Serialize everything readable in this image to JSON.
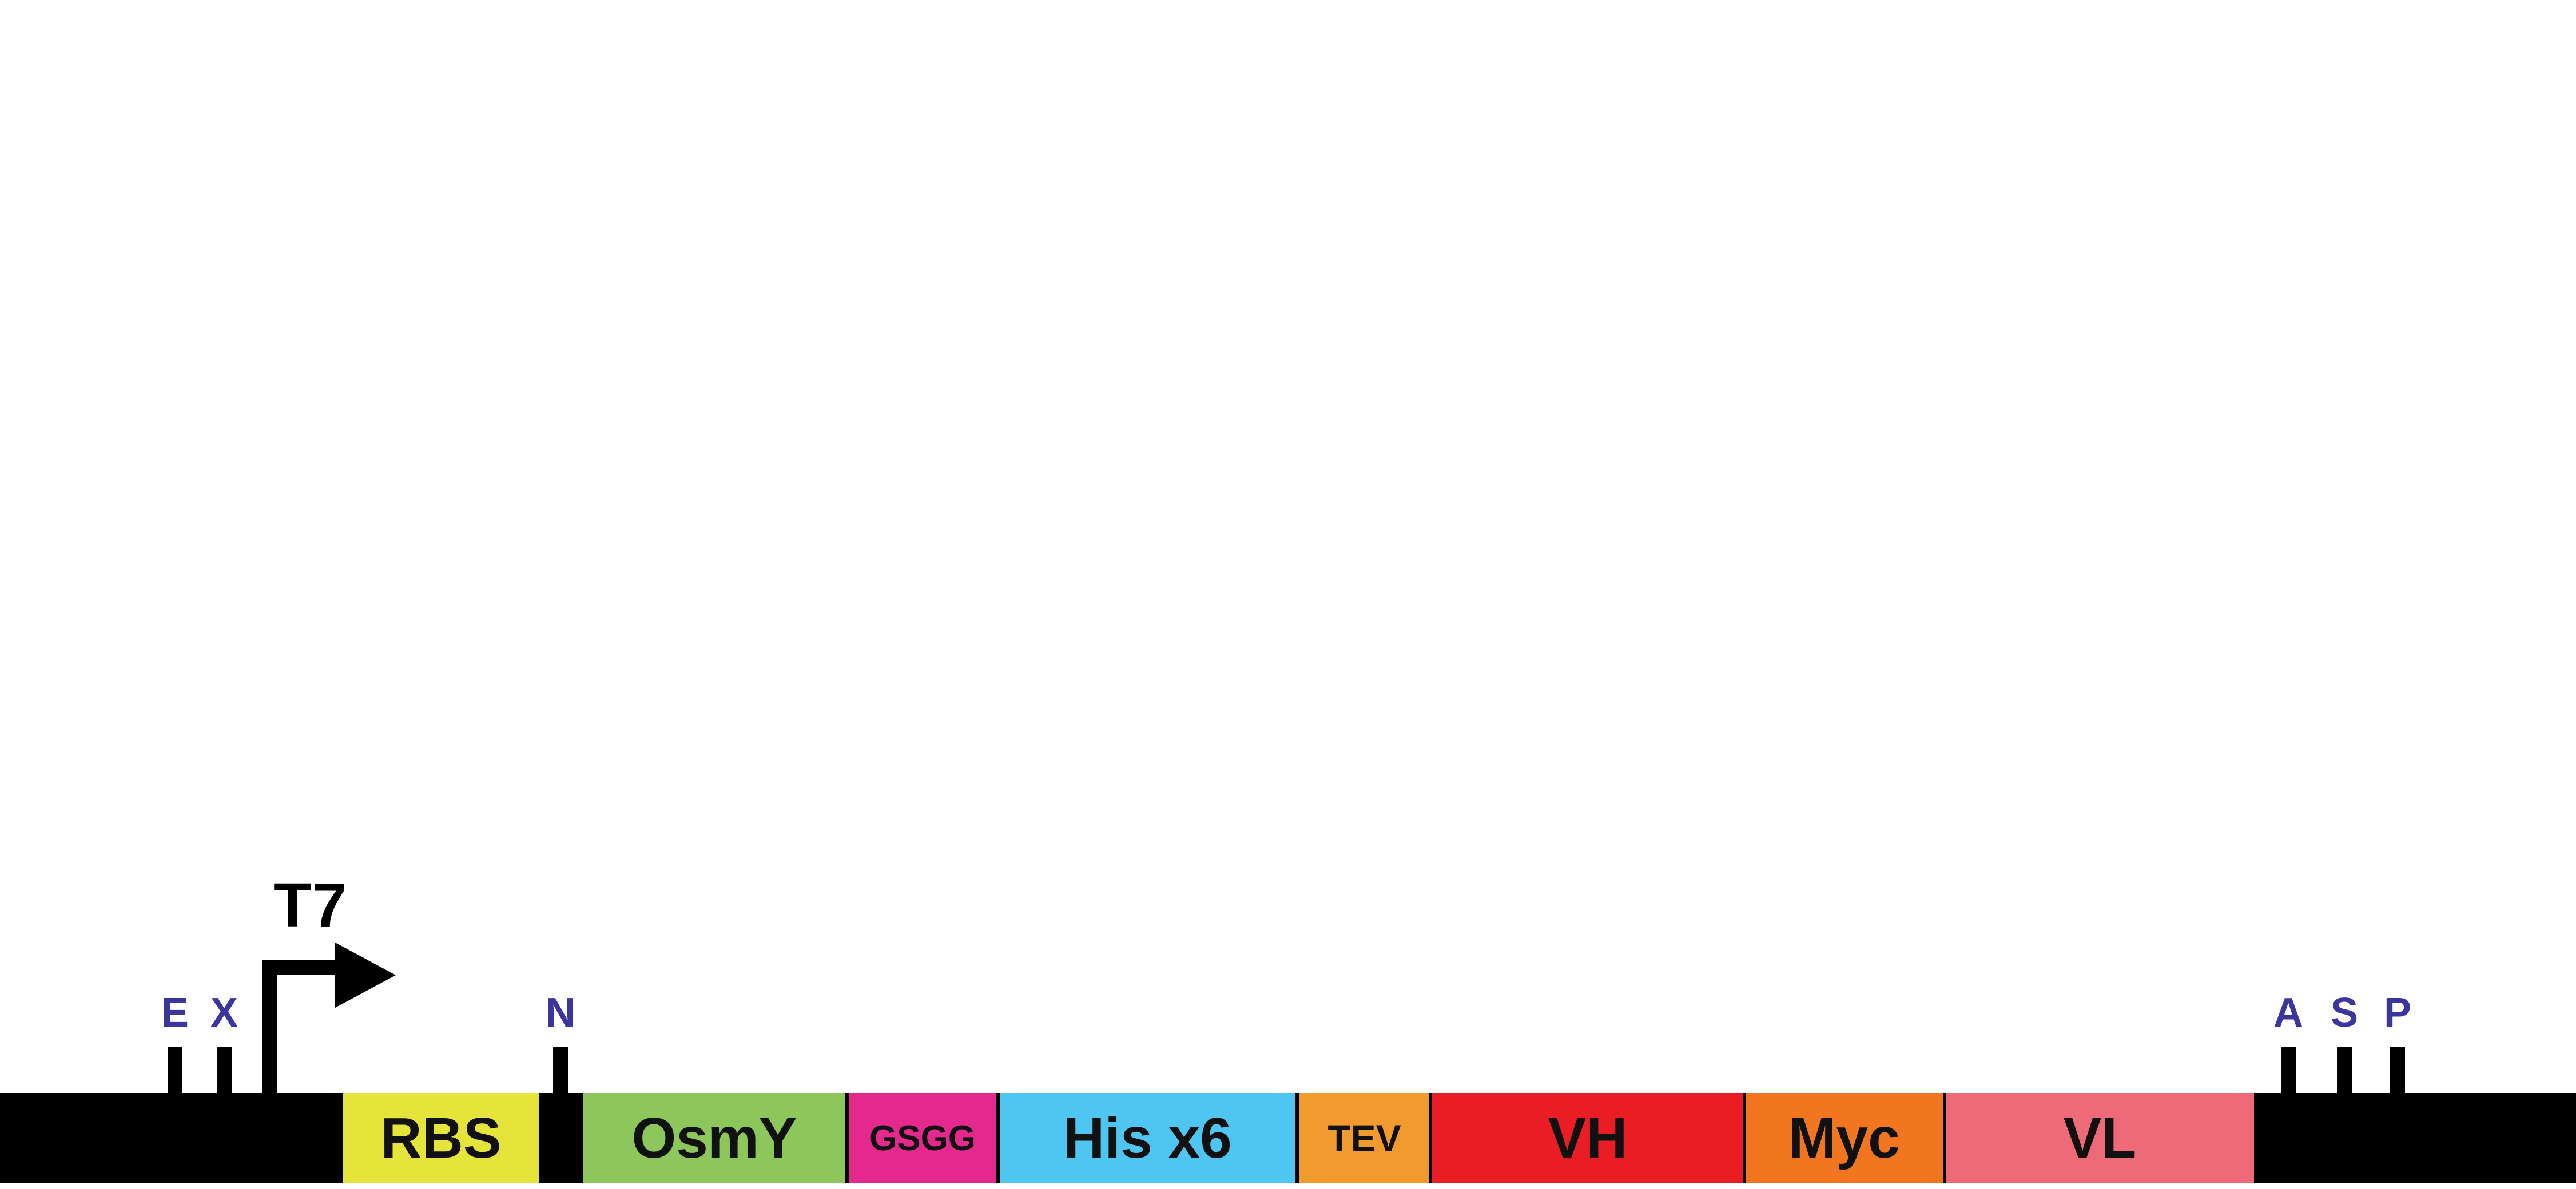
{
  "promoter": {
    "label": "T7"
  },
  "sites": [
    {
      "key": "e",
      "label": "E"
    },
    {
      "key": "x",
      "label": "X"
    },
    {
      "key": "n",
      "label": "N"
    },
    {
      "key": "a",
      "label": "A"
    },
    {
      "key": "s",
      "label": "S"
    },
    {
      "key": "p",
      "label": "P"
    }
  ],
  "segments": [
    {
      "key": "rbs",
      "label": "RBS",
      "color": "#e5e43a"
    },
    {
      "key": "osmy",
      "label": "OsmY",
      "color": "#8dc65a"
    },
    {
      "key": "gsgg",
      "label": "GSGG",
      "color": "#e5288e"
    },
    {
      "key": "his",
      "label": "His x6",
      "color": "#4fc6f2"
    },
    {
      "key": "tev",
      "label": "TEV",
      "color": "#f19a2e"
    },
    {
      "key": "vh",
      "label": "VH",
      "color": "#ea1d25"
    },
    {
      "key": "myc",
      "label": "Myc",
      "color": "#f27620"
    },
    {
      "key": "vl",
      "label": "VL",
      "color": "#ef6a78"
    }
  ],
  "colors": {
    "backbone": "#000000",
    "site_label": "#3b35a0"
  }
}
